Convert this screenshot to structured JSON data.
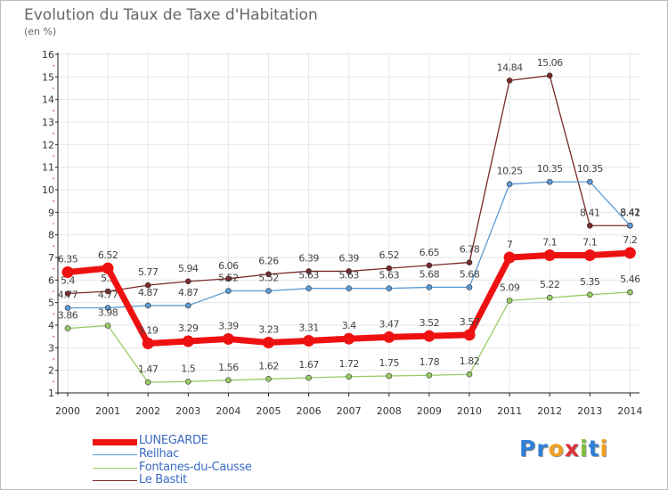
{
  "header": {
    "title": "Evolution du Taux de Taxe d'Habitation",
    "subtitle": "(en %)"
  },
  "brand": {
    "text": "Proxiti",
    "letters": [
      "P",
      "r",
      "o",
      "x",
      "i",
      "t",
      "i"
    ],
    "colors": [
      "#2f7fd8",
      "#2f7fd8",
      "#f0a020",
      "#d8333a",
      "#7fbf3c",
      "#2f7fd8",
      "#f0a020"
    ]
  },
  "chart_data": {
    "type": "line",
    "title": "Evolution du Taux de Taxe d'Habitation",
    "subtitle": "(en %)",
    "x": [
      "2000",
      "2001",
      "2002",
      "2003",
      "2004",
      "2005",
      "2006",
      "2007",
      "2008",
      "2009",
      "2010",
      "2011",
      "2012",
      "2013",
      "2014"
    ],
    "ylim": [
      1,
      16
    ],
    "yticks": [
      1,
      2,
      3,
      4,
      5,
      6,
      7,
      8,
      9,
      10,
      11,
      12,
      13,
      14,
      15,
      16
    ],
    "grid": true,
    "legend_position": "bottom-left",
    "series": [
      {
        "name": "Le Bastit",
        "color": "#7a2a2a",
        "values": [
          5.4,
          5.5,
          5.77,
          5.94,
          6.06,
          6.26,
          6.39,
          6.39,
          6.52,
          6.65,
          6.78,
          14.84,
          15.06,
          8.41,
          8.41
        ],
        "labels": [
          "5.4",
          "5.5",
          "5.77",
          "5.94",
          "6.06",
          "6.26",
          "6.39",
          "6.39",
          "6.52",
          "6.65",
          "6.78",
          "14.84",
          "15.06",
          "8.41",
          "8.41"
        ]
      },
      {
        "name": "Reilhac",
        "color": "#5b9bd5",
        "values": [
          4.77,
          4.77,
          4.87,
          4.87,
          5.52,
          5.52,
          5.63,
          5.63,
          5.63,
          5.68,
          5.68,
          10.25,
          10.35,
          10.35,
          8.42
        ],
        "labels": [
          "4.77",
          "4.77",
          "4.87",
          "4.87",
          "5.52",
          "5.52",
          "5.63",
          "5.63",
          "5.63",
          "5.68",
          "5.68",
          "10.25",
          "10.35",
          "10.35",
          "8.42"
        ]
      },
      {
        "name": "Fontanes-du-Causse",
        "color": "#99cc66",
        "values": [
          3.86,
          3.98,
          1.47,
          1.5,
          1.56,
          1.62,
          1.67,
          1.72,
          1.75,
          1.78,
          1.82,
          5.09,
          5.22,
          5.35,
          5.46
        ],
        "labels": [
          "3.86",
          "3.98",
          "1.47",
          "1.5",
          "1.56",
          "1.62",
          "1.67",
          "1.72",
          "1.75",
          "1.78",
          "1.82",
          "5.09",
          "5.22",
          "5.35",
          "5.46"
        ]
      },
      {
        "name": "LUNEGARDE",
        "color": "#ee1111",
        "values": [
          6.35,
          6.52,
          3.19,
          3.29,
          3.39,
          3.23,
          3.31,
          3.4,
          3.47,
          3.52,
          3.57,
          7,
          7.1,
          7.1,
          7.2
        ],
        "labels": [
          "6.35",
          "6.52",
          "3.19",
          "3.29",
          "3.39",
          "3.23",
          "3.31",
          "3.4",
          "3.47",
          "3.52",
          "3.57",
          "7",
          "7.1",
          "7.1",
          "7.2"
        ]
      }
    ],
    "legend": [
      "LUNEGARDE",
      "Reilhac",
      "Fontanes-du-Causse",
      "Le Bastit"
    ]
  }
}
